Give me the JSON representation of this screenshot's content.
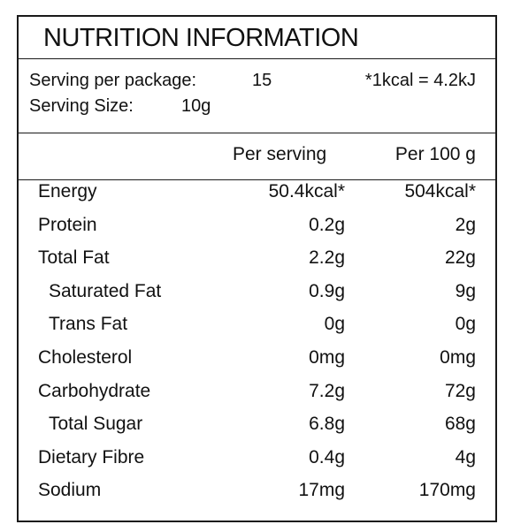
{
  "title": "NUTRITION INFORMATION",
  "serving": {
    "per_package_label": "Serving per package:",
    "per_package_value": "15",
    "size_label": "Serving Size:",
    "size_value": "10g",
    "conversion_note": "*1kcal = 4.2kJ"
  },
  "columns": {
    "per_serving": "Per serving",
    "per_100g": "Per 100 g"
  },
  "rows": [
    {
      "label": "Energy",
      "per_serving": "50.4kcal*",
      "per_100g": "504kcal*",
      "indent": false
    },
    {
      "label": "Protein",
      "per_serving": "0.2g",
      "per_100g": "2g",
      "indent": false
    },
    {
      "label": "Total Fat",
      "per_serving": "2.2g",
      "per_100g": "22g",
      "indent": false
    },
    {
      "label": "Saturated Fat",
      "per_serving": "0.9g",
      "per_100g": "9g",
      "indent": true
    },
    {
      "label": "Trans Fat",
      "per_serving": "0g",
      "per_100g": "0g",
      "indent": true
    },
    {
      "label": "Cholesterol",
      "per_serving": "0mg",
      "per_100g": "0mg",
      "indent": false
    },
    {
      "label": "Carbohydrate",
      "per_serving": "7.2g",
      "per_100g": "72g",
      "indent": false
    },
    {
      "label": "Total Sugar",
      "per_serving": "6.8g",
      "per_100g": "68g",
      "indent": true
    },
    {
      "label": "Dietary Fibre",
      "per_serving": "0.4g",
      "per_100g": "4g",
      "indent": false
    },
    {
      "label": "Sodium",
      "per_serving": "17mg",
      "per_100g": "170mg",
      "indent": false
    }
  ]
}
